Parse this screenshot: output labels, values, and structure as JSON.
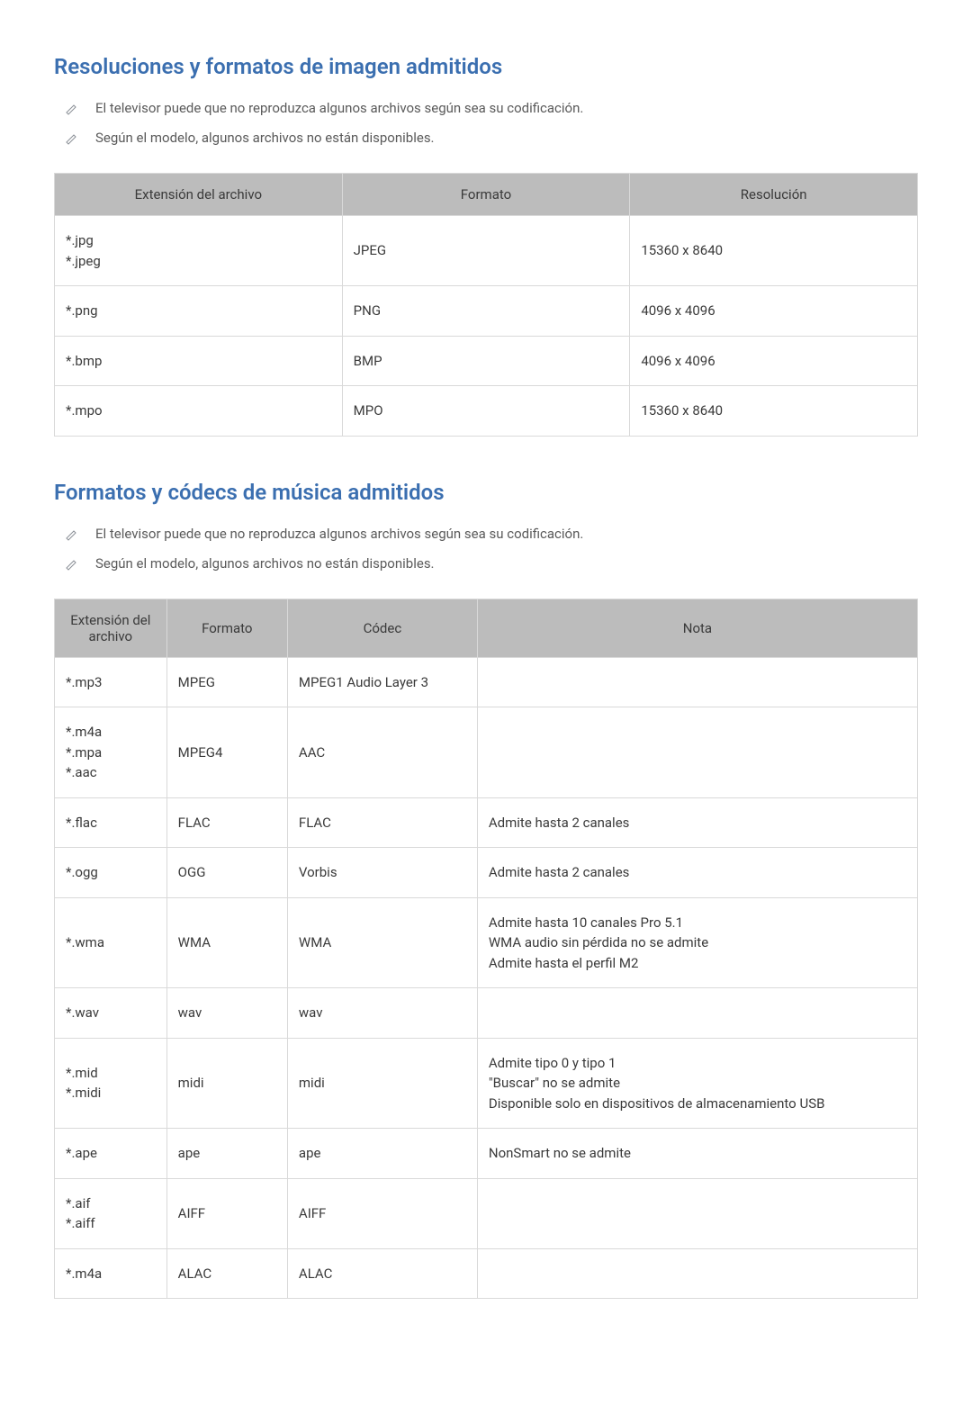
{
  "colors": {
    "title": "#3b6fb0",
    "header_bg": "#bcbcbc",
    "border": "#d9d9d9",
    "text": "#3a3a3a",
    "note_text": "#5a5a5a",
    "icon_stroke": "#8a8f96"
  },
  "section1": {
    "title": "Resoluciones y formatos de imagen admitidos",
    "notes": [
      "El televisor puede que no reproduzca algunos archivos según sea su codificación.",
      "Según el modelo, algunos archivos no están disponibles."
    ],
    "table": {
      "columns": [
        "Extensión del archivo",
        "Formato",
        "Resolución"
      ],
      "rows": [
        {
          "ext": [
            "*.jpg",
            "*.jpeg"
          ],
          "format": "JPEG",
          "res": "15360 x 8640"
        },
        {
          "ext": [
            "*.png"
          ],
          "format": "PNG",
          "res": "4096 x 4096"
        },
        {
          "ext": [
            "*.bmp"
          ],
          "format": "BMP",
          "res": "4096 x 4096"
        },
        {
          "ext": [
            "*.mpo"
          ],
          "format": "MPO",
          "res": "15360 x 8640"
        }
      ]
    }
  },
  "section2": {
    "title": "Formatos y códecs de música admitidos",
    "notes": [
      "El televisor puede que no reproduzca algunos archivos según sea su codificación.",
      "Según el modelo, algunos archivos no están disponibles."
    ],
    "table": {
      "columns": [
        "Extensión del archivo",
        "Formato",
        "Códec",
        "Nota"
      ],
      "rows": [
        {
          "ext": [
            "*.mp3"
          ],
          "format": "MPEG",
          "codec": "MPEG1 Audio Layer 3",
          "note": []
        },
        {
          "ext": [
            "*.m4a",
            "*.mpa",
            "*.aac"
          ],
          "format": "MPEG4",
          "codec": "AAC",
          "note": []
        },
        {
          "ext": [
            "*.flac"
          ],
          "format": "FLAC",
          "codec": "FLAC",
          "note": [
            "Admite hasta 2 canales"
          ]
        },
        {
          "ext": [
            "*.ogg"
          ],
          "format": "OGG",
          "codec": "Vorbis",
          "note": [
            "Admite hasta 2 canales"
          ]
        },
        {
          "ext": [
            "*.wma"
          ],
          "format": "WMA",
          "codec": "WMA",
          "note": [
            "Admite hasta 10 canales Pro 5.1",
            "WMA audio sin pérdida no se admite",
            "Admite hasta el perfil M2"
          ]
        },
        {
          "ext": [
            "*.wav"
          ],
          "format": "wav",
          "codec": "wav",
          "note": []
        },
        {
          "ext": [
            "*.mid",
            "*.midi"
          ],
          "format": "midi",
          "codec": "midi",
          "note": [
            "Admite tipo 0 y tipo 1",
            "\"Buscar\" no se admite",
            "Disponible solo en dispositivos de almacenamiento USB"
          ]
        },
        {
          "ext": [
            "*.ape"
          ],
          "format": "ape",
          "codec": "ape",
          "note": [
            "NonSmart no se admite"
          ]
        },
        {
          "ext": [
            "*.aif",
            "*.aiff"
          ],
          "format": "AIFF",
          "codec": "AIFF",
          "note": []
        },
        {
          "ext": [
            "*.m4a"
          ],
          "format": "ALAC",
          "codec": "ALAC",
          "note": []
        }
      ]
    }
  }
}
